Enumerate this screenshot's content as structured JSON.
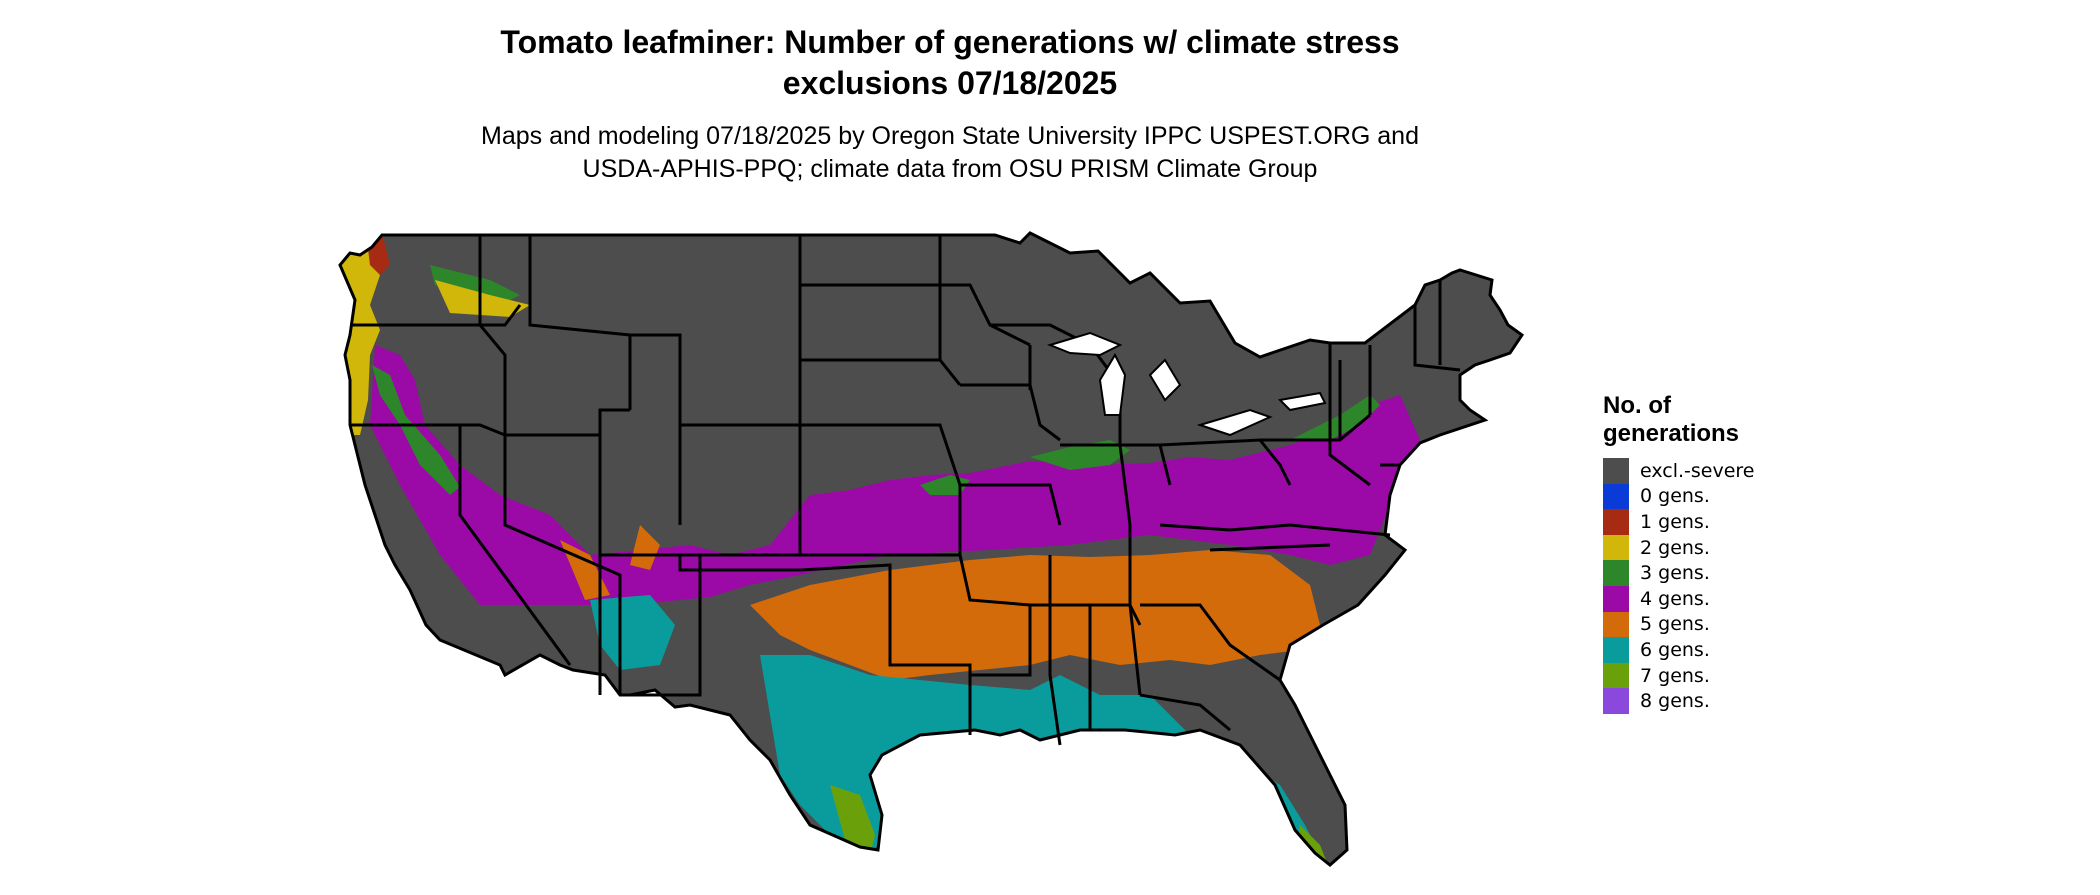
{
  "header": {
    "title_line1": "Tomato leafminer: Number of generations w/ climate stress",
    "title_line2": "exclusions 07/18/2025",
    "subtitle_line1": "Maps and modeling 07/18/2025 by Oregon State University IPPC USPEST.ORG and",
    "subtitle_line2": "USDA-APHIS-PPQ; climate data from OSU PRISM Climate Group"
  },
  "legend": {
    "title_line1": "No. of",
    "title_line2": "generations",
    "items": [
      {
        "label": "excl.-severe",
        "color": "#4d4d4d"
      },
      {
        "label": "0 gens.",
        "color": "#0a3bd6"
      },
      {
        "label": "1 gens.",
        "color": "#a72a12"
      },
      {
        "label": "2 gens.",
        "color": "#d1b70a"
      },
      {
        "label": "3 gens.",
        "color": "#2e862a"
      },
      {
        "label": "4 gens.",
        "color": "#9b0aa6"
      },
      {
        "label": "5 gens.",
        "color": "#d46b0a"
      },
      {
        "label": "6 gens.",
        "color": "#0a9c9c"
      },
      {
        "label": "7 gens.",
        "color": "#6aa10a"
      },
      {
        "label": "8 gens.",
        "color": "#8a48dc"
      }
    ]
  },
  "map": {
    "region": "Contiguous United States",
    "border_color": "#000000"
  }
}
